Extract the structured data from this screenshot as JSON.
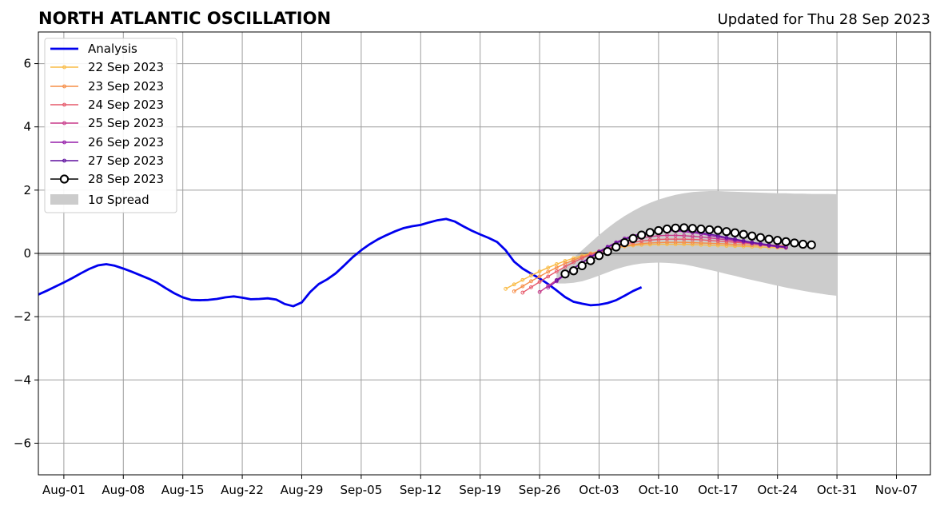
{
  "chart_data": {
    "type": "line",
    "title": "NORTH ATLANTIC OSCILLATION",
    "subtitle": "Updated for Thu 28 Sep 2023",
    "xlabel": "",
    "ylabel": "",
    "grid": true,
    "legend_position": "top-left",
    "xlim": [
      "2023-07-29",
      "2023-11-11"
    ],
    "ylim": [
      -7,
      7
    ],
    "x_ticks": [
      "2023-08-01",
      "2023-08-08",
      "2023-08-15",
      "2023-08-22",
      "2023-08-29",
      "2023-09-05",
      "2023-09-12",
      "2023-09-19",
      "2023-09-26",
      "2023-10-03",
      "2023-10-10",
      "2023-10-17",
      "2023-10-24",
      "2023-10-31",
      "2023-11-07"
    ],
    "x_tick_labels": [
      "Aug-01",
      "Aug-08",
      "Aug-15",
      "Aug-22",
      "Aug-29",
      "Sep-05",
      "Sep-12",
      "Sep-19",
      "Sep-26",
      "Oct-03",
      "Oct-10",
      "Oct-17",
      "Oct-24",
      "Oct-31",
      "Nov-07"
    ],
    "y_ticks": [
      6,
      4,
      2,
      0,
      -2,
      -4,
      -6
    ],
    "y_tick_labels": [
      "6",
      "4",
      "2",
      "0",
      "−2",
      "−4",
      "−6"
    ],
    "colors": {
      "analysis": "#0000ee",
      "spread": "#cccccc",
      "grid": "#9e9e9e",
      "zero_line": "#555555",
      "forecast_28": "#000000"
    },
    "analysis": {
      "name": "Analysis",
      "start": "2023-07-29",
      "values": [
        -1.3,
        -1.18,
        -1.05,
        -0.92,
        -0.78,
        -0.63,
        -0.49,
        -0.38,
        -0.34,
        -0.39,
        -0.48,
        -0.58,
        -0.69,
        -0.8,
        -0.93,
        -1.1,
        -1.26,
        -1.39,
        -1.47,
        -1.48,
        -1.47,
        -1.44,
        -1.39,
        -1.36,
        -1.4,
        -1.45,
        -1.44,
        -1.42,
        -1.46,
        -1.6,
        -1.67,
        -1.55,
        -1.22,
        -0.97,
        -0.82,
        -0.63,
        -0.38,
        -0.12,
        0.1,
        0.29,
        0.45,
        0.58,
        0.7,
        0.8,
        0.86,
        0.9,
        0.98,
        1.05,
        1.09,
        1.01,
        0.86,
        0.72,
        0.6,
        0.49,
        0.36,
        0.1,
        -0.26,
        -0.48,
        -0.64,
        -0.79,
        -0.97,
        -1.17,
        -1.38,
        -1.53,
        -1.59,
        -1.64,
        -1.62,
        -1.57,
        -1.48,
        -1.34,
        -1.19,
        -1.07
      ]
    },
    "spread": {
      "name": "1σ Spread",
      "start": "2023-09-28",
      "upper": [
        -0.62,
        -0.38,
        -0.14,
        0.1,
        0.34,
        0.58,
        0.8,
        1.0,
        1.18,
        1.34,
        1.48,
        1.6,
        1.7,
        1.78,
        1.85,
        1.9,
        1.94,
        1.96,
        1.97,
        1.97,
        1.96,
        1.95,
        1.94,
        1.93,
        1.92,
        1.91,
        1.9,
        1.9,
        1.89,
        1.89,
        1.88,
        1.88,
        1.88,
        1.87
      ],
      "lower": [
        -0.95,
        -0.95,
        -0.93,
        -0.88,
        -0.8,
        -0.7,
        -0.6,
        -0.5,
        -0.42,
        -0.36,
        -0.32,
        -0.3,
        -0.29,
        -0.3,
        -0.32,
        -0.35,
        -0.4,
        -0.46,
        -0.52,
        -0.58,
        -0.65,
        -0.71,
        -0.78,
        -0.84,
        -0.9,
        -0.96,
        -1.02,
        -1.08,
        -1.13,
        -1.18,
        -1.23,
        -1.27,
        -1.31,
        -1.34
      ]
    },
    "forecasts": [
      {
        "name": "22 Sep 2023",
        "color": "#f9bb45",
        "start": "2023-09-22",
        "values": [
          -1.12,
          -0.98,
          -0.84,
          -0.7,
          -0.57,
          -0.45,
          -0.34,
          -0.24,
          -0.15,
          -0.07,
          0.0,
          0.07,
          0.13,
          0.18,
          0.22,
          0.25,
          0.27,
          0.28,
          0.29,
          0.29,
          0.29,
          0.29,
          0.28,
          0.27,
          0.26,
          0.25,
          0.24,
          0.23,
          0.22,
          0.21,
          0.2,
          0.19,
          0.18,
          0.17
        ]
      },
      {
        "name": "23 Sep 2023",
        "color": "#f68d47",
        "start": "2023-09-23",
        "values": [
          -1.2,
          -1.04,
          -0.88,
          -0.73,
          -0.58,
          -0.45,
          -0.32,
          -0.21,
          -0.11,
          -0.02,
          0.06,
          0.13,
          0.19,
          0.24,
          0.28,
          0.31,
          0.33,
          0.34,
          0.35,
          0.35,
          0.35,
          0.34,
          0.33,
          0.32,
          0.31,
          0.3,
          0.28,
          0.27,
          0.26,
          0.25,
          0.24,
          0.22,
          0.21
        ]
      },
      {
        "name": "24 Sep 2023",
        "color": "#e6586a",
        "start": "2023-09-24",
        "values": [
          -1.24,
          -1.07,
          -0.9,
          -0.73,
          -0.57,
          -0.42,
          -0.28,
          -0.15,
          -0.04,
          0.06,
          0.15,
          0.23,
          0.3,
          0.35,
          0.39,
          0.42,
          0.44,
          0.45,
          0.45,
          0.45,
          0.44,
          0.43,
          0.41,
          0.39,
          0.37,
          0.35,
          0.33,
          0.31,
          0.29,
          0.27,
          0.25,
          0.23
        ]
      },
      {
        "name": "25 Sep 2023",
        "color": "#c83a8a",
        "start": "2023-09-26",
        "values": [
          -1.22,
          -1.03,
          -0.84,
          -0.65,
          -0.47,
          -0.3,
          -0.14,
          0.0,
          0.13,
          0.25,
          0.35,
          0.43,
          0.49,
          0.53,
          0.56,
          0.57,
          0.57,
          0.56,
          0.54,
          0.52,
          0.49,
          0.46,
          0.43,
          0.39,
          0.36,
          0.32,
          0.29,
          0.25,
          0.22,
          0.19
        ]
      },
      {
        "name": "26 Sep 2023",
        "color": "#951eaa",
        "start": "2023-09-27",
        "values": [
          -1.08,
          -0.88,
          -0.68,
          -0.48,
          -0.29,
          -0.11,
          0.06,
          0.21,
          0.35,
          0.47,
          0.56,
          0.63,
          0.68,
          0.71,
          0.72,
          0.71,
          0.69,
          0.66,
          0.62,
          0.57,
          0.52,
          0.47,
          0.42,
          0.37,
          0.32,
          0.28,
          0.24,
          0.21,
          0.18
        ]
      },
      {
        "name": "27 Sep 2023",
        "color": "#5e0f9e",
        "start": "2023-09-28",
        "values": [
          -0.85,
          -0.66,
          -0.47,
          -0.29,
          -0.12,
          0.04,
          0.19,
          0.32,
          0.44,
          0.54,
          0.62,
          0.68,
          0.72,
          0.74,
          0.74,
          0.73,
          0.7,
          0.66,
          0.61,
          0.56,
          0.5,
          0.45,
          0.4,
          0.35,
          0.31,
          0.27,
          0.23,
          0.2
        ]
      },
      {
        "name": "28 Sep 2023",
        "color": "#000000",
        "start": "2023-09-29",
        "values": [
          -0.65,
          -0.55,
          -0.39,
          -0.23,
          -0.07,
          0.06,
          0.2,
          0.34,
          0.47,
          0.58,
          0.66,
          0.72,
          0.77,
          0.8,
          0.81,
          0.79,
          0.77,
          0.75,
          0.73,
          0.69,
          0.65,
          0.6,
          0.55,
          0.5,
          0.45,
          0.41,
          0.37,
          0.33,
          0.29,
          0.27
        ]
      }
    ]
  }
}
